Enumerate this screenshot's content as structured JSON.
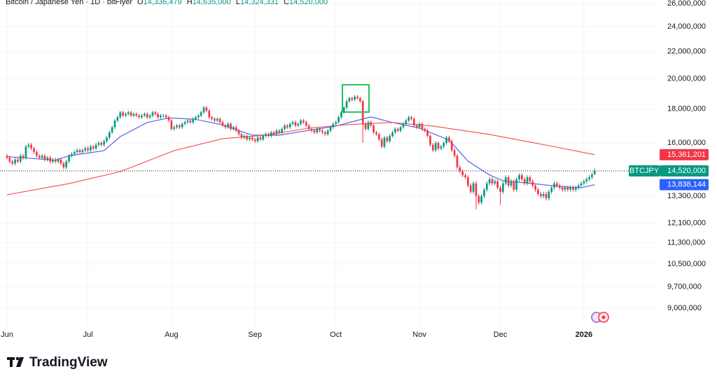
{
  "chart_data": {
    "type": "candlestick",
    "header": {
      "symbol": "Bitcoin / Japanese Yen · 1D · bitFlyer",
      "ohlc": [
        {
          "key": "O",
          "value": 14336479,
          "label": "14,336,479"
        },
        {
          "key": "H",
          "value": 14635000,
          "label": "14,635,000"
        },
        {
          "key": "L",
          "value": 14324331,
          "label": "14,324,331"
        },
        {
          "key": "C",
          "value": 14520000,
          "label": "14,520,000"
        }
      ]
    },
    "branding": "TradingView",
    "up_color": "#089981",
    "down_color": "#f23645",
    "log_scale": true,
    "grid": true,
    "xlim": [
      -2.6,
      240.26
    ],
    "xticks": [
      {
        "value": 0,
        "label": "Jun"
      },
      {
        "value": 30,
        "label": "Jul"
      },
      {
        "value": 61,
        "label": "Aug"
      },
      {
        "value": 92,
        "label": "Sep"
      },
      {
        "value": 122,
        "label": "Oct"
      },
      {
        "value": 153,
        "label": "Nov"
      },
      {
        "value": 183,
        "label": "Dec"
      },
      {
        "value": 214,
        "label": "2026",
        "bold": true
      }
    ],
    "ylim": [
      8470000,
      26320000
    ],
    "yticks": [
      {
        "value": 26000000,
        "label": "26,000,000"
      },
      {
        "value": 24000000,
        "label": "24,000,000"
      },
      {
        "value": 22000000,
        "label": "22,000,000"
      },
      {
        "value": 20000000,
        "label": "20,000,000"
      },
      {
        "value": 18000000,
        "label": "18,000,000"
      },
      {
        "value": 16000000,
        "label": "16,000,000"
      },
      {
        "value": 13300000,
        "label": "13,300,000"
      },
      {
        "value": 12100000,
        "label": "12,100,000"
      },
      {
        "value": 11300000,
        "label": "11,300,000"
      },
      {
        "value": 10500000,
        "label": "10,500,000"
      },
      {
        "value": 9700000,
        "label": "9,700,000"
      },
      {
        "value": 9000000,
        "label": "9,000,000"
      }
    ],
    "open": [
      15300000,
      15200000,
      15000000,
      14900000,
      15100000,
      15000000,
      15300000,
      15200000,
      15800000,
      15900000,
      15700000,
      15500000,
      15300000,
      15200000,
      15300000,
      15100000,
      15200000,
      15000000,
      15100000,
      15000000,
      15100000,
      14900000,
      14700000,
      15000000,
      15300000,
      15400000,
      15500000,
      15600000,
      15500000,
      15600000,
      15700000,
      15600000,
      15800000,
      15700000,
      15900000,
      16000000,
      15900000,
      16100000,
      16300000,
      16600000,
      16900000,
      17300000,
      17500000,
      17800000,
      17600000,
      17700000,
      17800000,
      17600000,
      17700000,
      17600000,
      17500000,
      17600000,
      17700000,
      17500000,
      17600000,
      17800000,
      17700000,
      17500000,
      17600000,
      17600000,
      17500000,
      17300000,
      16800000,
      16900000,
      17000000,
      16900000,
      17100000,
      17200000,
      17300000,
      17200000,
      17400000,
      17500000,
      17600000,
      17800000,
      18100000,
      17900000,
      17500000,
      17400000,
      17300000,
      17400000,
      17200000,
      17000000,
      16900000,
      17100000,
      16800000,
      16900000,
      16700000,
      16500000,
      16300000,
      16400000,
      16200000,
      16300000,
      16200000,
      16100000,
      16300000,
      16200000,
      16400000,
      16500000,
      16400000,
      16600000,
      16500000,
      16700000,
      16600000,
      16800000,
      17000000,
      16900000,
      17100000,
      17200000,
      17000000,
      17100000,
      17300000,
      17200000,
      17000000,
      16800000,
      16700000,
      16600000,
      16800000,
      16700000,
      16600000,
      16500000,
      16700000,
      16900000,
      17100000,
      17200000,
      17500000,
      17800000,
      18100000,
      18500000,
      18700000,
      18600000,
      18800000,
      18700000,
      18500000,
      17100000,
      16800000,
      17200000,
      17000000,
      16600000,
      16500000,
      16200000,
      15800000,
      16300000,
      16100000,
      16400000,
      16600000,
      16800000,
      16700000,
      16900000,
      17100000,
      17300000,
      17500000,
      17400000,
      17000000,
      16900000,
      17100000,
      16800000,
      16700000,
      16400000,
      15900000,
      15600000,
      16000000,
      15700000,
      15800000,
      16000000,
      16300000,
      16100000,
      15600000,
      15300000,
      14700000,
      14500000,
      14300000,
      14200000,
      13800000,
      13500000,
      13900000,
      13300000,
      13000000,
      13300000,
      13600000,
      13900000,
      14100000,
      13900000,
      14000000,
      13700000,
      13500000,
      13900000,
      14200000,
      13800000,
      14000000,
      13600000,
      14100000,
      14300000,
      14100000,
      13900000,
      14200000,
      14000000,
      13800000,
      13600000,
      13400000,
      13300000,
      13400000,
      13200000,
      13500000,
      13700000,
      13900000,
      13800000,
      13700000,
      13600000,
      13700000,
      13600000,
      13700000,
      13600000,
      13700000,
      13800000,
      13900000,
      14000000,
      14100000,
      14200000,
      14336479
    ],
    "high": [
      15400000,
      15300000,
      15100000,
      15200000,
      15200000,
      15400000,
      15400000,
      15900000,
      16000000,
      16000000,
      15800000,
      15600000,
      15400000,
      15400000,
      15400000,
      15300000,
      15300000,
      15200000,
      15200000,
      15200000,
      15200000,
      15000000,
      15100000,
      15400000,
      15500000,
      15600000,
      15700000,
      15700000,
      15700000,
      15800000,
      15800000,
      15900000,
      15900000,
      16000000,
      16100000,
      16100000,
      16200000,
      16400000,
      16700000,
      17000000,
      17400000,
      17600000,
      17900000,
      17900000,
      17800000,
      17900000,
      17900000,
      17800000,
      17800000,
      17700000,
      17700000,
      17800000,
      17800000,
      17700000,
      17900000,
      17900000,
      17800000,
      17700000,
      17700000,
      17700000,
      17600000,
      17400000,
      17000000,
      17100000,
      17100000,
      17200000,
      17300000,
      17400000,
      17400000,
      17500000,
      17600000,
      17700000,
      17900000,
      18200000,
      18200000,
      18000000,
      17600000,
      17500000,
      17500000,
      17500000,
      17300000,
      17100000,
      17200000,
      17200000,
      17000000,
      17000000,
      16800000,
      16600000,
      16500000,
      16500000,
      16400000,
      16400000,
      16300000,
      16400000,
      16400000,
      16500000,
      16600000,
      16600000,
      16700000,
      16700000,
      16800000,
      16800000,
      16900000,
      17100000,
      17100000,
      17200000,
      17300000,
      17300000,
      17200000,
      17400000,
      17400000,
      17300000,
      17100000,
      16900000,
      16800000,
      16900000,
      16900000,
      16800000,
      16700000,
      16800000,
      17000000,
      17200000,
      17300000,
      17600000,
      17900000,
      18200000,
      18600000,
      18800000,
      18800000,
      18900000,
      18900000,
      18800000,
      18600000,
      17200000,
      17300000,
      17300000,
      17100000,
      16700000,
      16600000,
      16300000,
      16400000,
      16400000,
      16500000,
      16700000,
      16900000,
      16900000,
      17000000,
      17200000,
      17400000,
      17600000,
      17600000,
      17500000,
      17100000,
      17200000,
      17200000,
      16900000,
      16800000,
      16500000,
      16000000,
      16100000,
      16100000,
      15900000,
      16100000,
      16400000,
      16400000,
      16200000,
      15700000,
      15400000,
      14800000,
      14600000,
      14400000,
      14300000,
      13900000,
      14000000,
      14000000,
      13400000,
      13400000,
      13700000,
      14000000,
      14200000,
      14200000,
      14100000,
      14100000,
      13800000,
      14000000,
      14300000,
      14300000,
      14100000,
      14100000,
      14200000,
      14400000,
      14400000,
      14200000,
      14300000,
      14300000,
      14100000,
      13900000,
      13700000,
      13500000,
      13500000,
      13500000,
      13600000,
      13800000,
      14000000,
      14000000,
      13900000,
      13800000,
      13800000,
      13800000,
      13800000,
      13800000,
      13800000,
      13900000,
      14000000,
      14100000,
      14200000,
      14300000,
      14440000,
      14635000
    ],
    "low": [
      15100000,
      14900000,
      14800000,
      14800000,
      14900000,
      14900000,
      15100000,
      15100000,
      15700000,
      15600000,
      15400000,
      15200000,
      15100000,
      15100000,
      15000000,
      15000000,
      14900000,
      14900000,
      14900000,
      14900000,
      14800000,
      14600000,
      14600000,
      14900000,
      15200000,
      15300000,
      15400000,
      15400000,
      15400000,
      15500000,
      15500000,
      15500000,
      15600000,
      15600000,
      15800000,
      15800000,
      15800000,
      16000000,
      16200000,
      16500000,
      16800000,
      17200000,
      17400000,
      17500000,
      17500000,
      17600000,
      17500000,
      17500000,
      17500000,
      17400000,
      17400000,
      17500000,
      17400000,
      17400000,
      17500000,
      17600000,
      17400000,
      17400000,
      17500000,
      17400000,
      17200000,
      16700000,
      16700000,
      16800000,
      16800000,
      16800000,
      17000000,
      17100000,
      17100000,
      17100000,
      17300000,
      17400000,
      17500000,
      17700000,
      17800000,
      17400000,
      17300000,
      17200000,
      17200000,
      17100000,
      16900000,
      16800000,
      16800000,
      16700000,
      16700000,
      16600000,
      16400000,
      16200000,
      16200000,
      16100000,
      16100000,
      16100000,
      16000000,
      16000000,
      16100000,
      16100000,
      16300000,
      16300000,
      16300000,
      16400000,
      16400000,
      16500000,
      16500000,
      16700000,
      16800000,
      16800000,
      17000000,
      16900000,
      16900000,
      17000000,
      17100000,
      16900000,
      16700000,
      16600000,
      16500000,
      16500000,
      16600000,
      16500000,
      16400000,
      16400000,
      16600000,
      16800000,
      17000000,
      17100000,
      17400000,
      17700000,
      18000000,
      18400000,
      18500000,
      18500000,
      18600000,
      18400000,
      16000000,
      16700000,
      16700000,
      16900000,
      16500000,
      16400000,
      16100000,
      15700000,
      15700000,
      16000000,
      16000000,
      16300000,
      16500000,
      16600000,
      16600000,
      16800000,
      17000000,
      17200000,
      17300000,
      16900000,
      16800000,
      16800000,
      16700000,
      16600000,
      16300000,
      15800000,
      15500000,
      15500000,
      15600000,
      15600000,
      15700000,
      15900000,
      16000000,
      15500000,
      15200000,
      14600000,
      14400000,
      14200000,
      14100000,
      13700000,
      13400000,
      13400000,
      12700000,
      12900000,
      12900000,
      13200000,
      13500000,
      13800000,
      13800000,
      13800000,
      13600000,
      12900000,
      13400000,
      13800000,
      13700000,
      13700000,
      13500000,
      13500000,
      14000000,
      14000000,
      13800000,
      13800000,
      13900000,
      13700000,
      13500000,
      13300000,
      13200000,
      13200000,
      13100000,
      13100000,
      13400000,
      13600000,
      13700000,
      13600000,
      13500000,
      13500000,
      13500000,
      13500000,
      13500000,
      13500000,
      13600000,
      13700000,
      13800000,
      13900000,
      14000000,
      14100000,
      14324331
    ],
    "close": [
      15200000,
      15000000,
      14900000,
      15100000,
      15000000,
      15300000,
      15200000,
      15800000,
      15900000,
      15700000,
      15500000,
      15300000,
      15200000,
      15300000,
      15100000,
      15200000,
      15000000,
      15100000,
      15000000,
      15100000,
      14900000,
      14700000,
      15000000,
      15300000,
      15400000,
      15500000,
      15600000,
      15500000,
      15600000,
      15700000,
      15600000,
      15800000,
      15700000,
      15900000,
      16000000,
      15900000,
      16100000,
      16300000,
      16600000,
      16900000,
      17300000,
      17500000,
      17800000,
      17600000,
      17700000,
      17800000,
      17600000,
      17700000,
      17600000,
      17500000,
      17600000,
      17700000,
      17500000,
      17600000,
      17800000,
      17700000,
      17500000,
      17600000,
      17600000,
      17500000,
      17300000,
      16800000,
      16900000,
      17000000,
      16900000,
      17100000,
      17200000,
      17300000,
      17200000,
      17400000,
      17500000,
      17600000,
      17800000,
      18100000,
      17900000,
      17500000,
      17400000,
      17300000,
      17400000,
      17200000,
      17000000,
      16900000,
      17100000,
      16800000,
      16900000,
      16700000,
      16500000,
      16300000,
      16400000,
      16200000,
      16300000,
      16200000,
      16100000,
      16300000,
      16200000,
      16400000,
      16500000,
      16400000,
      16600000,
      16500000,
      16700000,
      16600000,
      16800000,
      17000000,
      16900000,
      17100000,
      17200000,
      17000000,
      17100000,
      17300000,
      17200000,
      17000000,
      16800000,
      16700000,
      16600000,
      16800000,
      16700000,
      16600000,
      16500000,
      16700000,
      16900000,
      17100000,
      17200000,
      17500000,
      17800000,
      18100000,
      18500000,
      18700000,
      18600000,
      18800000,
      18700000,
      18500000,
      17100000,
      16800000,
      17200000,
      17000000,
      16600000,
      16500000,
      16200000,
      15800000,
      16300000,
      16100000,
      16400000,
      16600000,
      16800000,
      16700000,
      16900000,
      17100000,
      17300000,
      17500000,
      17400000,
      17000000,
      16900000,
      17100000,
      16800000,
      16700000,
      16400000,
      15900000,
      15600000,
      16000000,
      15700000,
      15800000,
      16000000,
      16300000,
      16100000,
      15600000,
      15300000,
      14700000,
      14500000,
      14300000,
      14200000,
      13800000,
      13500000,
      13900000,
      13300000,
      13000000,
      13300000,
      13600000,
      13900000,
      14100000,
      13900000,
      14000000,
      13700000,
      13500000,
      13900000,
      14200000,
      13800000,
      14000000,
      13600000,
      14100000,
      14300000,
      14100000,
      13900000,
      14200000,
      14000000,
      13800000,
      13600000,
      13400000,
      13300000,
      13400000,
      13200000,
      13500000,
      13700000,
      13900000,
      13800000,
      13700000,
      13600000,
      13700000,
      13600000,
      13700000,
      13600000,
      13700000,
      13800000,
      13900000,
      14000000,
      14100000,
      14200000,
      14336479,
      14520000
    ],
    "lines": [
      {
        "color": "#5b5fe8",
        "x": [
          0,
          18,
          23,
          36,
          42,
          52,
          60,
          70,
          80,
          91,
          101,
          112,
          122,
          130,
          135,
          143,
          153,
          164,
          171,
          179,
          184,
          195,
          205,
          213,
          218
        ],
        "values": [
          15260000,
          15070000,
          15300000,
          15580000,
          16360000,
          17180000,
          17460000,
          17370000,
          17040000,
          16440000,
          16440000,
          16720000,
          16970000,
          17310000,
          17520000,
          17180000,
          16850000,
          16160000,
          15020000,
          14310000,
          14030000,
          13890000,
          13750000,
          13690000,
          13838144
        ]
      },
      {
        "color": "#f45b5b",
        "x": [
          0,
          23,
          42,
          62,
          80,
          96,
          112,
          127,
          143,
          158,
          179,
          200,
          218
        ],
        "values": [
          13360000,
          13890000,
          14480000,
          15580000,
          16240000,
          16440000,
          16850000,
          17060000,
          17180000,
          16970000,
          16480000,
          15880000,
          15361201
        ]
      }
    ],
    "price_labels": [
      {
        "value": 15361201,
        "label": "15,361,201",
        "color": "#f23645"
      },
      {
        "name": "BTCJPY",
        "value": 14520000,
        "label": "14,520,000",
        "color": "#089981"
      },
      {
        "value": 13838144,
        "label": "13,838,144",
        "color": "#2962ff"
      }
    ]
  }
}
